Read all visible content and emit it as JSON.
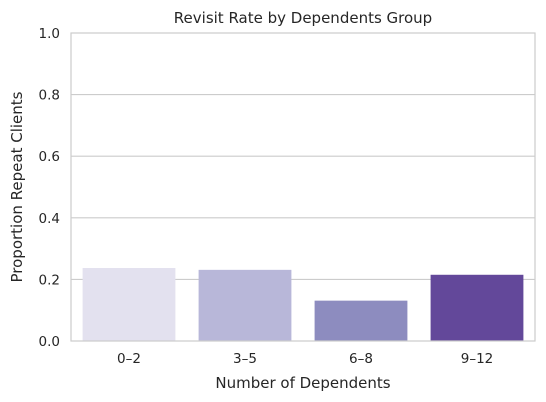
{
  "chart_data": {
    "type": "bar",
    "title": "Revisit Rate by Dependents Group",
    "xlabel": "Number of Dependents",
    "ylabel": "Proportion Repeat Clients",
    "categories": [
      "0–2",
      "3–5",
      "6–8",
      "9–12"
    ],
    "values": [
      0.237,
      0.231,
      0.131,
      0.215
    ],
    "ylim": [
      0,
      1.0
    ],
    "yticks": [
      "0.0",
      "0.2",
      "0.4",
      "0.6",
      "0.8",
      "1.0"
    ],
    "ytick_values": [
      0,
      0.2,
      0.4,
      0.6,
      0.8,
      1.0
    ],
    "grid": true,
    "legend": "none",
    "colors": [
      "#e3e1ef",
      "#b8b7d9",
      "#8d8cbf",
      "#63489a"
    ]
  }
}
